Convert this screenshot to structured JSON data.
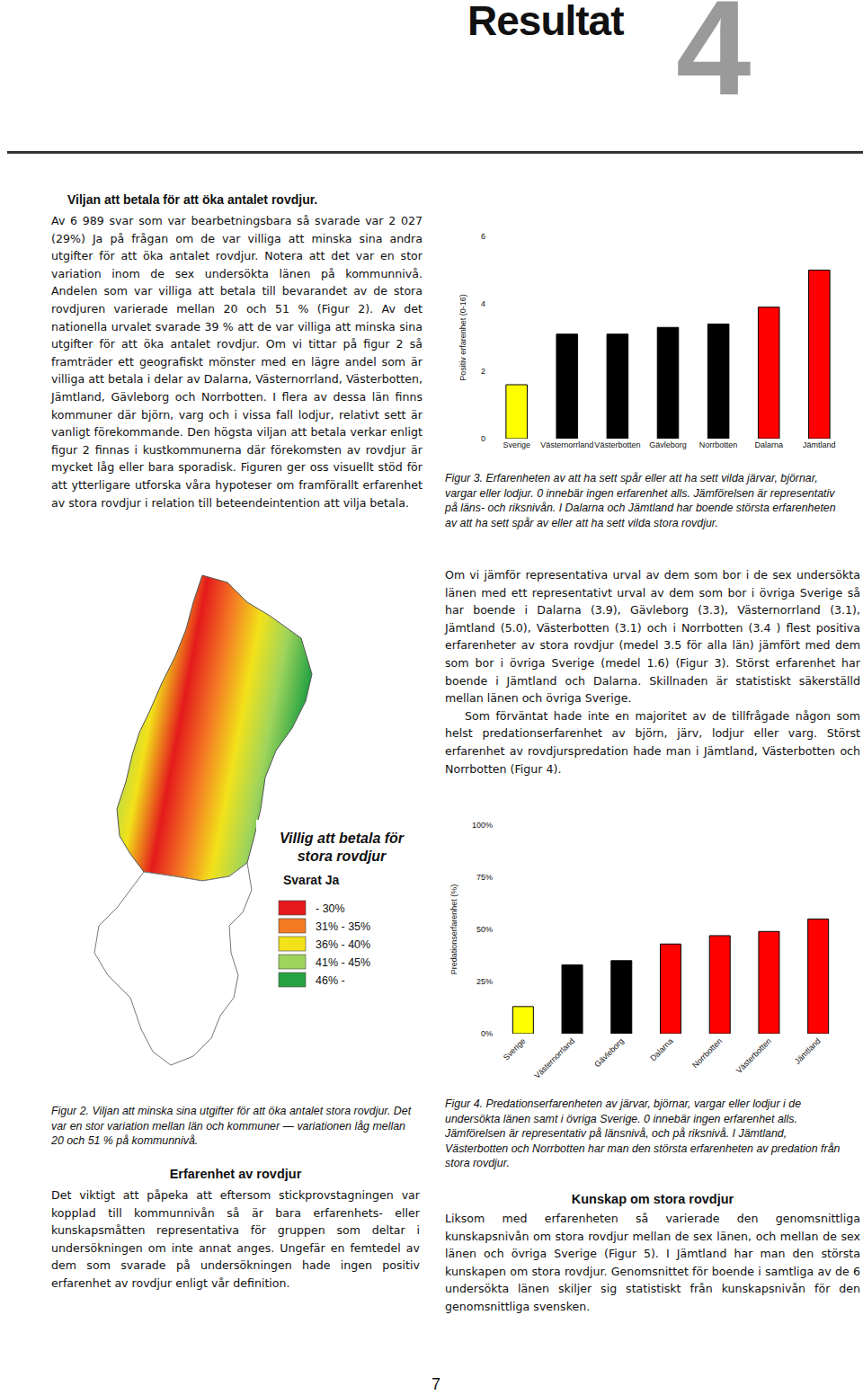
{
  "document": {
    "header": {
      "title": "Resultat",
      "chapter": "4"
    },
    "left_column": {
      "heading": "Viljan att betala för att öka antalet rovdjur.",
      "paragraph": "Av 6 989 svar som var bearbetningsbara så svarade var 2 027 (29%) Ja på frågan om de var villiga att minska sina andra utgifter för att öka antalet rovdjur. Notera att det var en stor variation inom de sex undersökta länen på kommunnivå. Andelen som var villiga att betala till bevarandet av de stora rovdjuren varierade mellan 20 och 51 % (Figur 2). Av det nationella urvalet svarade 39 % att de var villiga att minska sina utgifter för att öka antalet rovdjur. Om vi tittar på figur 2 så framträder ett geografiskt mönster med en lägre andel som är villiga att betala i delar av Dalarna, Västernorrland, Västerbotten, Jämtland, Gävleborg och Norrbotten. I flera av dessa län finns kommuner där björn, varg och i vissa fall lodjur, relativt sett är vanligt förekommande. Den högsta viljan att betala verkar enligt figur 2 finnas i kustkommunerna där förekomsten av rovdjur är mycket låg eller bara sporadisk. Figuren ger oss visuellt stöd för att ytterligare utforska våra hypoteser om framförallt erfarenhet av stora rovdjur i relation till beteendeintention att vilja betala."
    },
    "figure3_caption": "Figur 3. Erfarenheten av att ha sett spår eller att ha sett vilda järvar, björnar, vargar eller lodjur. 0 innebär ingen erfarenhet alls. Jämförelsen är representativ på läns- och riksnivån. I Dalarna och Jämtland har boende största erfarenheten av att ha sett spår av eller att ha sett vilda stora rovdjur.",
    "right_paragraphs": [
      "Om vi jämför representativa urval av dem som bor i de sex undersökta länen med ett representativt urval av dem som bor i övriga Sverige så har boende i Dalarna (3.9), Gävleborg (3.3), Västernorrland (3.1), Jämtland (5.0), Västerbotten (3.1) och i Norrbotten (3.4 ) flest positiva erfarenheter av stora rovdjur (medel 3.5 för alla län) jämfört med dem som bor i övriga Sverige (medel 1.6) (Figur 3). Störst erfarenhet har boende i Jämtland och Dalarna. Skillnaden är statistiskt säkerställd mellan länen och övriga Sverige.",
      "Som förväntat hade inte en majoritet av de tillfrågade någon som helst predationserfarenhet av björn, järv, lodjur eller varg. Störst erfarenhet av rovdjurspredation hade man i Jämtland, Västerbotten och Norrbotten (Figur 4)."
    ],
    "map": {
      "title": [
        "Villig att betala för",
        "stora rovdjur"
      ],
      "subtitle": "Svarat Ja",
      "legend": [
        {
          "label": "- 30%",
          "color": "#e41a1c"
        },
        {
          "label": "31% - 35%",
          "color": "#f47a24"
        },
        {
          "label": "36% - 40%",
          "color": "#f2e21a"
        },
        {
          "label": "41% - 45%",
          "color": "#9fd45c"
        },
        {
          "label": "46% -",
          "color": "#27a343"
        }
      ]
    },
    "figure2_caption": "Figur 2. Viljan att minska sina utgifter för att öka antalet stora rovdjur. Det var en stor variation mellan län och kommuner — variationen låg mellan 20 och 51 % på kommunnivå.",
    "section_experience": {
      "heading": "Erfarenhet av rovdjur",
      "paragraph": "Det viktigt att påpeka att eftersom stickprovstagningen var kopplad till kommunnivån så är bara erfarenhets- eller kunskapsmåtten representativa för gruppen som deltar i undersökningen om inte annat anges. Ungefär en femtedel av dem som svarade på undersökningen hade ingen positiv erfarenhet av rovdjur enligt vår definition."
    },
    "figure4_caption": "Figur 4. Predationserfarenheten av järvar, björnar, vargar eller lodjur i de undersökta länen samt i övriga Sverige. 0 innebär ingen erfarenhet alls. Jämförelsen är representativ på länsnivå, och på riksnivå. I Jämtland, Västerbotten och Norrbotten har man den största erfarenheten av predation från stora rovdjur.",
    "section_knowledge": {
      "heading": "Kunskap om stora rovdjur",
      "paragraph": "Liksom med erfarenheten så varierade den genomsnittliga kunskapsnivån om stora rovdjur mellan de sex länen, och mellan de sex länen och övriga Sverige (Figur 5). I Jämtland har man den största kunskapen om stora rovdjur. Genomsnittet för boende i samtliga av de 6 undersökta länen skiljer sig statistiskt från kunskapsnivån för den genomsnittliga svensken."
    },
    "page_number": "7"
  },
  "chart_data": [
    {
      "type": "bar",
      "y_label": "Positiv erfarenhet (0-16)",
      "categories": [
        "Sverige",
        "Västernorrland",
        "Västerbotten",
        "Gävleborg",
        "Norrbotten",
        "Dalarna",
        "Jämtland"
      ],
      "values": [
        1.6,
        3.1,
        3.1,
        3.3,
        3.4,
        3.9,
        5.0
      ],
      "colors": [
        "#ffff00",
        "#000000",
        "#000000",
        "#000000",
        "#000000",
        "#ff0000",
        "#ff0000"
      ],
      "ylim": [
        0,
        6
      ],
      "yticks": [
        0,
        2,
        4,
        6
      ],
      "grid": false
    },
    {
      "type": "bar",
      "y_label": "Predationserfarenhet (%)",
      "categories": [
        "Sverige",
        "Västernorrland",
        "Gävleborg",
        "Dalarna",
        "Norrbotten",
        "Västerbotten",
        "Jämtland"
      ],
      "values": [
        13,
        33,
        35,
        43,
        47,
        49,
        55
      ],
      "colors": [
        "#ffff00",
        "#000000",
        "#000000",
        "#ff0000",
        "#ff0000",
        "#ff0000",
        "#ff0000"
      ],
      "ylim": [
        0,
        100
      ],
      "yticks": [
        {
          "value": 0,
          "label": "0%"
        },
        {
          "value": 25,
          "label": "25%"
        },
        {
          "value": 50,
          "label": "50%"
        },
        {
          "value": 75,
          "label": "75%"
        },
        {
          "value": 100,
          "label": "100%"
        }
      ],
      "grid": false
    }
  ]
}
